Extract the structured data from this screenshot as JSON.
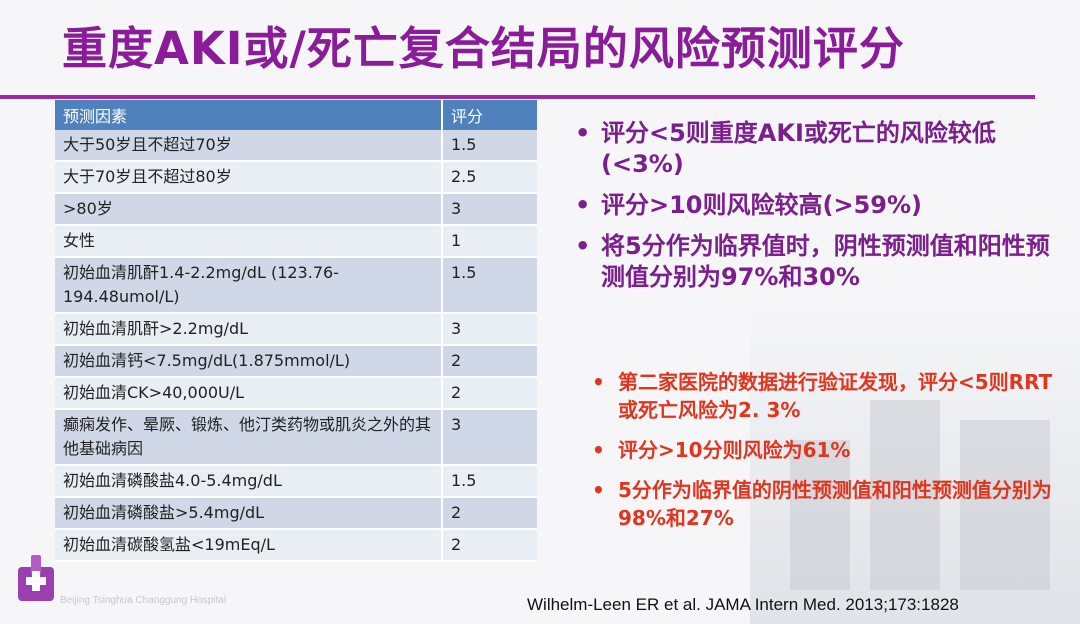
{
  "title": "重度AKI或/死亡复合结局的风险预测评分",
  "table": {
    "headers": [
      "预测因素",
      "评分"
    ],
    "rows": [
      {
        "factor": "大于50岁且不超过70岁",
        "score": "1.5"
      },
      {
        "factor": "大于70岁且不超过80岁",
        "score": "2.5"
      },
      {
        "factor": ">80岁",
        "score": "3"
      },
      {
        "factor": "女性",
        "score": "1"
      },
      {
        "factor": "初始血清肌酐1.4-2.2mg/dL (123.76-194.48umol/L)",
        "score": "1.5"
      },
      {
        "factor": "初始血清肌酐>2.2mg/dL",
        "score": "3"
      },
      {
        "factor": "初始血清钙<7.5mg/dL(1.875mmol/L)",
        "score": "2"
      },
      {
        "factor": "初始血清CK>40,000U/L",
        "score": "2"
      },
      {
        "factor": "癫痫发作、晕厥、锻炼、他汀类药物或肌炎之外的其他基础病因",
        "score": "3"
      },
      {
        "factor": "初始血清磷酸盐4.0-5.4mg/dL",
        "score": "1.5"
      },
      {
        "factor": "初始血清磷酸盐>5.4mg/dL",
        "score": "2"
      },
      {
        "factor": "初始血清碳酸氢盐<19mEq/L",
        "score": "2"
      }
    ]
  },
  "purple_bullets": [
    "评分<5则重度AKI或死亡的风险较低(<3%)",
    "评分>10则风险较高(>59%)",
    "将5分作为临界值时，阴性预测值和阳性预测值分别为97%和30%"
  ],
  "red_bullets": [
    "第二家医院的数据进行验证发现，评分<5则RRT或死亡风险为2. 3%",
    "评分>10分则风险为61%",
    "5分作为临界值的阴性预测值和阳性预测值分别为98%和27%"
  ],
  "bullet_symbol": "•",
  "citation": "Wilhelm-Leen ER et al. JAMA Intern Med. 2013;173:1828",
  "hospital_name": "Beijing Tsinghua Changgung Hospital",
  "colors": {
    "title": "#8a1c9a",
    "accent_line": "#9a2aa8",
    "table_header": "#4f81bd",
    "row_odd": "#d0d8e8",
    "row_even": "#e9edf4",
    "purple_text": "#7a1f8c",
    "red_text": "#e0351e"
  },
  "logo_icon": "hospital-cross-logo-icon"
}
